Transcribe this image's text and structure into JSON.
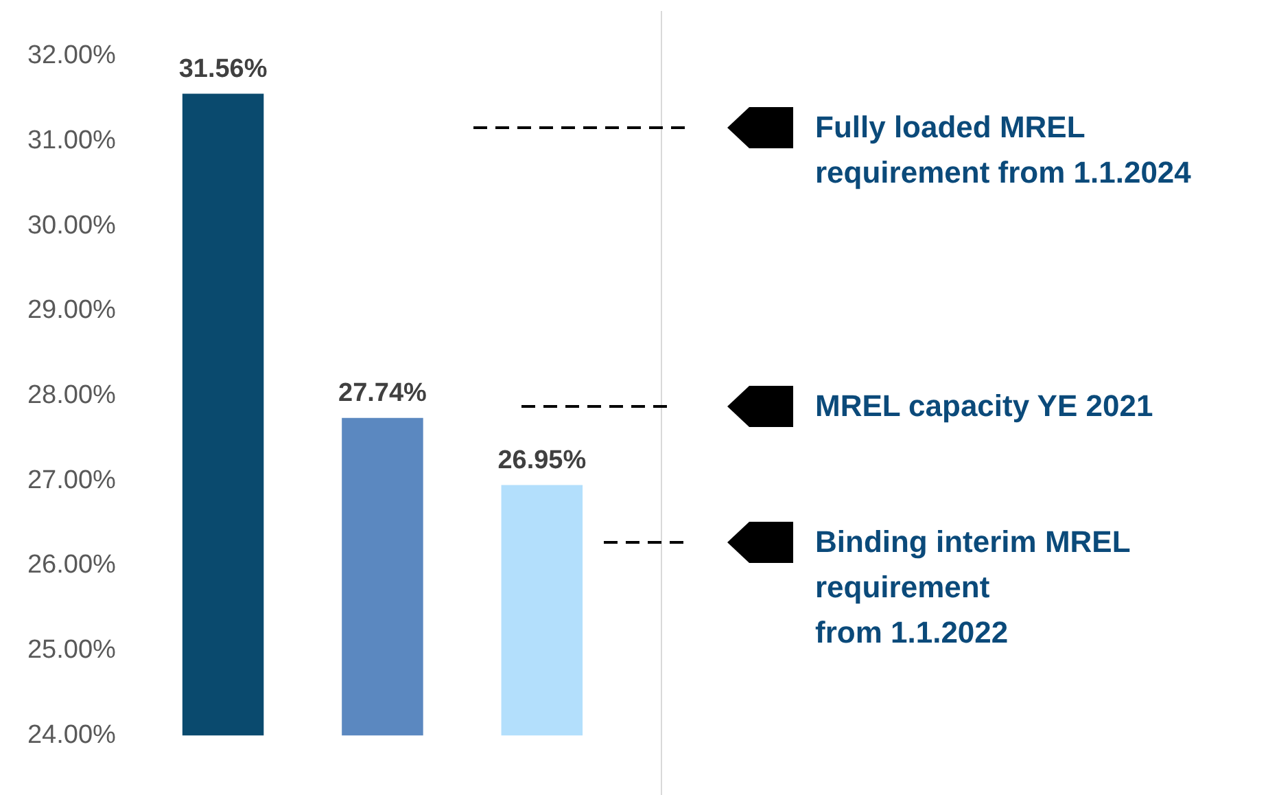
{
  "chart_data": {
    "type": "bar",
    "categories": [
      null,
      null,
      null
    ],
    "values": [
      31.56,
      27.74,
      26.95
    ],
    "colors": [
      "#0a4a6e",
      "#5b88c0",
      "#b3dffc"
    ],
    "value_labels": [
      "31.56%",
      "27.74%",
      "26.95%"
    ],
    "ylim": [
      24,
      32
    ],
    "yticks": [
      {
        "value": 24,
        "label": "24.00%"
      },
      {
        "value": 25,
        "label": "25.00%"
      },
      {
        "value": 26,
        "label": "26.00%"
      },
      {
        "value": 27,
        "label": "27.00%"
      },
      {
        "value": 28,
        "label": "28.00%"
      },
      {
        "value": 29,
        "label": "29.00%"
      },
      {
        "value": 30,
        "label": "30.00%"
      },
      {
        "value": 31,
        "label": "31.00%"
      },
      {
        "value": 32,
        "label": "32.00%"
      }
    ],
    "grid": false,
    "legend": false,
    "annotations": [
      "Fully loaded MREL\nrequirement from 1.1.2024",
      "MREL capacity YE 2021",
      "Binding interim MREL\nrequirement\nfrom 1.1.2022"
    ]
  }
}
